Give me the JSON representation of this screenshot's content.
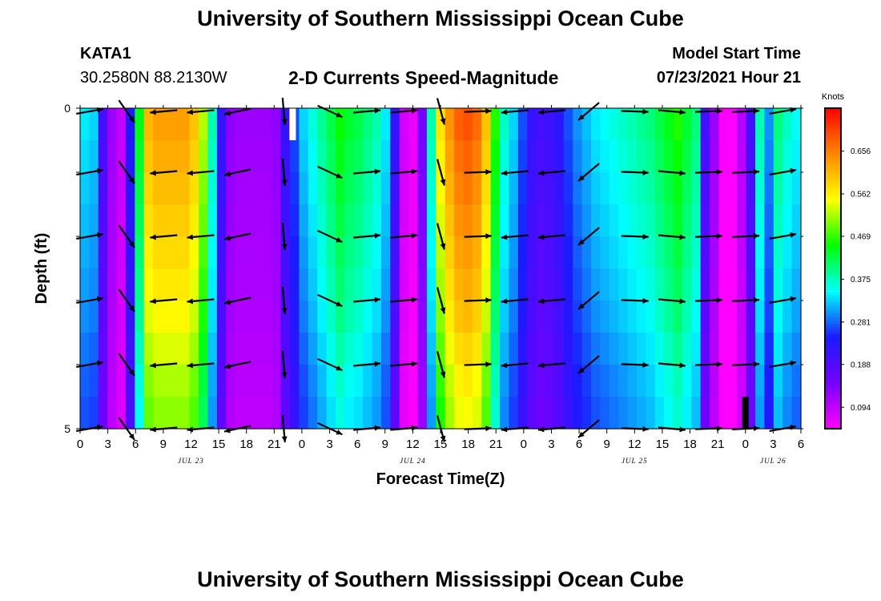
{
  "header": {
    "title": "University of Southern Mississippi Ocean Cube",
    "station_id": "KATA1",
    "station_coords": "30.2580N  88.2130W",
    "chart_title": "2-D Currents Speed-Magnitude",
    "model_label": "Model Start Time",
    "model_time": "07/23/2021 Hour 21"
  },
  "footer": {
    "title": "University of Southern Mississippi Ocean Cube"
  },
  "chart_data": {
    "type": "heatmap",
    "title": "2-D Currents Speed-Magnitude",
    "xlabel": "Forecast Time(Z)",
    "ylabel": "Depth (ft)",
    "units": "Knots",
    "x_start_hour": 0,
    "x_end_hour": 78,
    "x_tick_labels": [
      "0",
      "3",
      "6",
      "9",
      "12",
      "15",
      "18",
      "21",
      "0",
      "3",
      "6",
      "9",
      "12",
      "15",
      "18",
      "21",
      "0",
      "3",
      "6",
      "9",
      "12",
      "15",
      "18",
      "21",
      "0",
      "3",
      "6"
    ],
    "date_labels": [
      {
        "label": "JUL 23",
        "hour": 12
      },
      {
        "label": "JUL 24",
        "hour": 36
      },
      {
        "label": "JUL 25",
        "hour": 60
      },
      {
        "label": "JUL 26",
        "hour": 75
      }
    ],
    "y_tick_labels": [
      "0",
      "5"
    ],
    "ylim": [
      0,
      5
    ],
    "colorbar": {
      "min": 0.047,
      "max": 0.75,
      "tick_values": [
        0.094,
        0.188,
        0.281,
        0.375,
        0.469,
        0.562,
        0.656
      ],
      "tick_labels": [
        "0.094",
        "0.188",
        "0.281",
        "0.375",
        "0.469",
        "0.562",
        "0.656"
      ],
      "colors": [
        "#ff00ff",
        "#7700ff",
        "#1a1aff",
        "#00ffff",
        "#00ff00",
        "#ffff00",
        "#ff8800",
        "#ff0000"
      ]
    },
    "speed_profile_by_hour": [
      0.34,
      0.33,
      0.2,
      0.12,
      0.09,
      0.24,
      0.44,
      0.61,
      0.63,
      0.63,
      0.63,
      0.63,
      0.6,
      0.52,
      0.38,
      0.22,
      0.13,
      0.12,
      0.12,
      0.12,
      0.12,
      0.13,
      0.22,
      0.27,
      0.33,
      0.36,
      0.39,
      0.42,
      0.45,
      0.43,
      0.42,
      0.4,
      0.38,
      0.34,
      0.22,
      0.08,
      0.06,
      0.15,
      0.38,
      0.57,
      0.64,
      0.68,
      0.69,
      0.67,
      0.6,
      0.46,
      0.37,
      0.33,
      0.27,
      0.22,
      0.2,
      0.21,
      0.23,
      0.27,
      0.3,
      0.32,
      0.34,
      0.35,
      0.36,
      0.37,
      0.38,
      0.39,
      0.4,
      0.42,
      0.44,
      0.46,
      0.43,
      0.4,
      0.2,
      0.12,
      0.05,
      0.04,
      0.1,
      0.2,
      0.38,
      0.3,
      0.4,
      0.37,
      0.35
    ],
    "depth_scale_by_row": [
      1.0,
      0.98,
      0.96,
      0.94,
      0.92,
      0.9,
      0.88,
      0.85,
      0.82,
      0.8
    ],
    "masked_cells": [
      {
        "hour": 23,
        "depth_from": 0,
        "depth_to": 0.5,
        "color": "#ffffff"
      },
      {
        "hour": 72,
        "depth_from": 4.5,
        "depth_to": 5,
        "color": "#000000"
      }
    ],
    "current_vectors_note": "Black arrows show direction of the depth-averaged currents at sampled times and depths",
    "current_vectors": [
      {
        "hour": 0,
        "direction_deg": 80
      },
      {
        "hour": 4,
        "direction_deg": 145
      },
      {
        "hour": 8,
        "direction_deg": 265
      },
      {
        "hour": 12,
        "direction_deg": 265
      },
      {
        "hour": 16,
        "direction_deg": 258
      },
      {
        "hour": 21,
        "direction_deg": 175
      },
      {
        "hour": 26,
        "direction_deg": 115
      },
      {
        "hour": 30,
        "direction_deg": 85
      },
      {
        "hour": 34,
        "direction_deg": 85
      },
      {
        "hour": 38,
        "direction_deg": 165
      },
      {
        "hour": 42,
        "direction_deg": 88
      },
      {
        "hour": 46,
        "direction_deg": 265
      },
      {
        "hour": 50,
        "direction_deg": 265
      },
      {
        "hour": 54,
        "direction_deg": 230
      },
      {
        "hour": 59,
        "direction_deg": 92
      },
      {
        "hour": 63,
        "direction_deg": 95
      },
      {
        "hour": 67,
        "direction_deg": 88
      },
      {
        "hour": 71,
        "direction_deg": 87
      },
      {
        "hour": 75,
        "direction_deg": 80
      }
    ]
  }
}
